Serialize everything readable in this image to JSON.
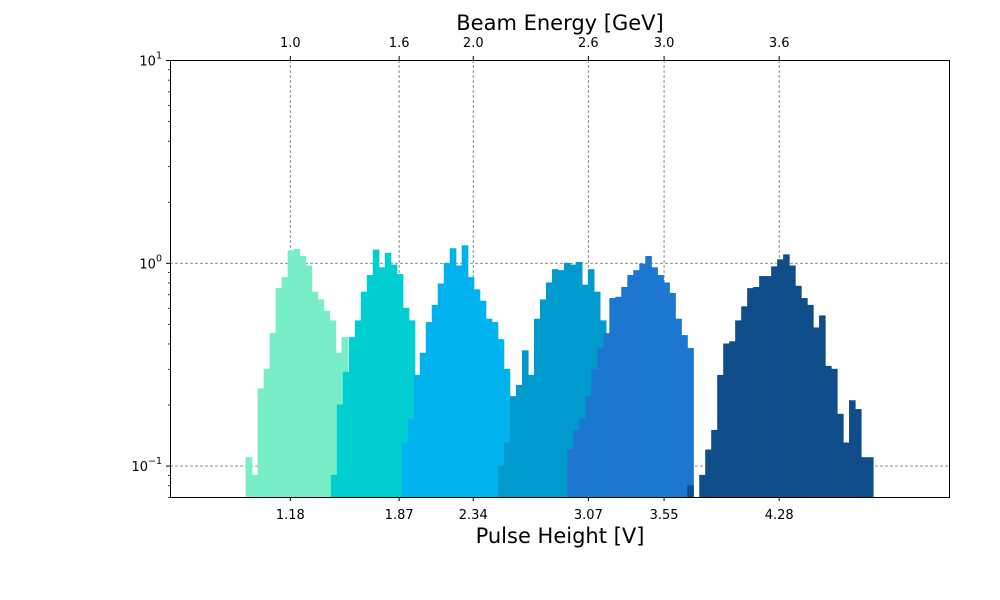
{
  "chart_data": {
    "type": "bar",
    "title": "Beam Energy [GeV]",
    "xlabel": "Pulse Height [V]",
    "ylabel": "",
    "y_scale": "log",
    "ylim": [
      0.07,
      10
    ],
    "xlim": [
      0.42,
      5.36
    ],
    "grid": true,
    "legend": "none",
    "y_ticks": [
      {
        "value": 0.1,
        "base": "10",
        "exp": "−1"
      },
      {
        "value": 1,
        "base": "10",
        "exp": "0"
      },
      {
        "value": 10,
        "base": "10",
        "exp": "1"
      }
    ],
    "x_ticks": [
      {
        "value": 1.18,
        "label": "1.18"
      },
      {
        "value": 1.87,
        "label": "1.87"
      },
      {
        "value": 2.34,
        "label": "2.34"
      },
      {
        "value": 3.07,
        "label": "3.07"
      },
      {
        "value": 3.55,
        "label": "3.55"
      },
      {
        "value": 4.28,
        "label": "4.28"
      }
    ],
    "top_ticks": [
      {
        "value": 1.18,
        "label": "1.0"
      },
      {
        "value": 1.87,
        "label": "1.6"
      },
      {
        "value": 2.34,
        "label": "2.0"
      },
      {
        "value": 3.07,
        "label": "2.6"
      },
      {
        "value": 3.55,
        "label": "3.0"
      },
      {
        "value": 4.28,
        "label": "3.6"
      }
    ],
    "series": [
      {
        "color": "#77EDC8",
        "bin_start": 0.9,
        "bin_width": 0.038,
        "values": [
          0.11,
          0.09,
          0.24,
          0.3,
          0.45,
          0.75,
          0.85,
          1.15,
          1.17,
          1.08,
          0.97,
          0.72,
          0.66,
          0.58,
          0.52,
          0.36,
          0.43,
          0.19,
          0.31
        ]
      },
      {
        "color": "#00CED1",
        "bin_start": 1.44,
        "bin_width": 0.038,
        "values": [
          0.09,
          0.2,
          0.29,
          0.43,
          0.52,
          0.72,
          0.87,
          1.16,
          0.95,
          1.12,
          0.98,
          0.88,
          0.6,
          0.52
        ]
      },
      {
        "color": "#00B2EE",
        "bin_start": 1.89,
        "bin_width": 0.038,
        "values": [
          0.13,
          0.17,
          0.28,
          0.36,
          0.51,
          0.62,
          0.79,
          1.0,
          1.18,
          0.97,
          1.22,
          0.85,
          0.74,
          0.65,
          0.53,
          0.51,
          0.42,
          0.3
        ]
      },
      {
        "color": "#009ACD",
        "bin_start": 2.5,
        "bin_width": 0.038,
        "values": [
          0.1,
          0.13,
          0.22,
          0.25,
          0.37,
          0.28,
          0.53,
          0.66,
          0.8,
          0.93,
          0.92,
          1.0,
          0.98,
          1.01,
          0.78,
          0.93,
          0.72,
          0.52
        ]
      },
      {
        "color": "#1C77D0",
        "bin_start": 2.94,
        "bin_width": 0.038,
        "values": [
          0.12,
          0.15,
          0.17,
          0.22,
          0.3,
          0.38,
          0.45,
          0.67,
          0.68,
          0.76,
          0.87,
          0.92,
          0.99,
          1.08,
          0.95,
          0.87,
          0.8,
          0.71,
          0.53,
          0.44,
          0.38
        ]
      },
      {
        "color": "#104E8B",
        "bin_start": 3.7,
        "bin_width": 0.038,
        "values": [
          0.08,
          0.06,
          0.09,
          0.12,
          0.15,
          0.28,
          0.4,
          0.41,
          0.52,
          0.61,
          0.75,
          0.76,
          0.86,
          0.86,
          0.96,
          1.04,
          1.1,
          0.97,
          0.77,
          0.67,
          0.62,
          0.48,
          0.55,
          0.31,
          0.3,
          0.18,
          0.13,
          0.21,
          0.19,
          0.11,
          0.11
        ]
      }
    ]
  }
}
